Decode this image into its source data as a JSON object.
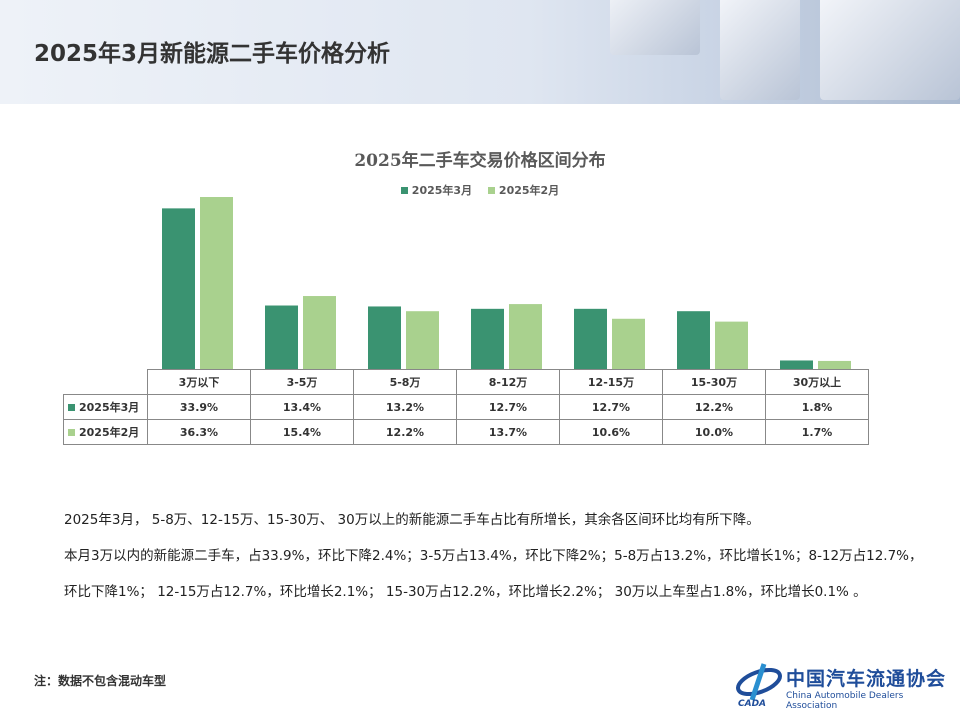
{
  "header": {
    "title": "2025年3月新能源二手车价格分析"
  },
  "chart_data": {
    "type": "bar",
    "title": "2025年二手车交易价格区间分布",
    "categories": [
      "3万以下",
      "3-5万",
      "5-8万",
      "8-12万",
      "12-15万",
      "15-30万",
      "30万以上"
    ],
    "series": [
      {
        "name": "2025年3月",
        "values": [
          33.9,
          13.4,
          13.2,
          12.7,
          12.7,
          12.2,
          1.8
        ],
        "labels": [
          "33.9%",
          "13.4%",
          "13.2%",
          "12.7%",
          "12.7%",
          "12.2%",
          "1.8%"
        ],
        "color": "#3a9371"
      },
      {
        "name": "2025年2月",
        "values": [
          36.3,
          15.4,
          12.2,
          13.7,
          10.6,
          10.0,
          1.7
        ],
        "labels": [
          "36.3%",
          "15.4%",
          "12.2%",
          "13.7%",
          "10.6%",
          "10.0%",
          "1.7%"
        ],
        "color": "#a9d18e"
      }
    ],
    "unit": "%",
    "legend": "top",
    "grid": false,
    "data_table": true
  },
  "body": {
    "paragraphs": [
      "2025年3月， 5-8万、12-15万、15-30万、 30万以上的新能源二手车占比有所增长，其余各区间环比均有所下降。",
      "本月3万以内的新能源二手车，占33.9%，环比下降2.4%；3-5万占13.4%，环比下降2%；5-8万占13.2%，环比增长1%；8-12万占12.7%，环比下降1%；  12-15万占12.7%，环比增长2.1%；  15-30万占12.2%，环比增长2.2%；  30万以上车型占1.8%，环比增长0.1% 。"
    ]
  },
  "note": "注：数据不包含混动车型",
  "logo": {
    "cn": "中国汽车流通协会",
    "en": "China Automobile Dealers Association",
    "mark": "CADA"
  }
}
